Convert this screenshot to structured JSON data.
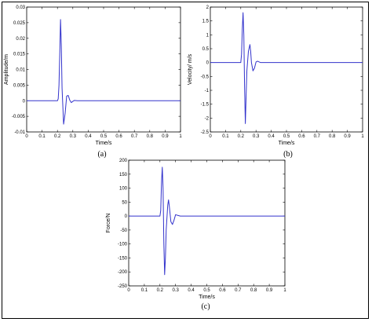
{
  "chart_data": [
    {
      "type": "line",
      "caption": "(a)",
      "xlabel": "Time/s",
      "ylabel": "Amplitude/m",
      "xlim": [
        0,
        1
      ],
      "ylim": [
        -0.01,
        0.03
      ],
      "xticks": [
        "0",
        "0.1",
        "0.2",
        "0.3",
        "0.4",
        "0.5",
        "0.6",
        "0.7",
        "0.8",
        "0.9",
        "1"
      ],
      "yticks": [
        "-0.01",
        "-0.005",
        "0",
        "0.005",
        "0.01",
        "0.015",
        "0.02",
        "0.025",
        "0.03"
      ],
      "grid": false,
      "color": "#3333cc",
      "x": [
        0,
        0.2,
        0.205,
        0.21,
        0.215,
        0.22,
        0.225,
        0.23,
        0.24,
        0.25,
        0.26,
        0.27,
        0.28,
        0.29,
        0.3,
        0.31,
        0.33,
        0.35,
        1
      ],
      "y": [
        0,
        0,
        0.0006,
        0.005,
        0.015,
        0.026,
        0.018,
        0.004,
        -0.0075,
        -0.004,
        0.0015,
        0.0017,
        0.0002,
        -0.0006,
        -0.0002,
        0.0001,
        0,
        0,
        0
      ]
    },
    {
      "type": "line",
      "caption": "(b)",
      "xlabel": "Time/s",
      "ylabel": "Velocity/ m/s",
      "xlim": [
        0,
        1
      ],
      "ylim": [
        -2.5,
        2
      ],
      "xticks": [
        "0",
        "0.1",
        "0.2",
        "0.3",
        "0.4",
        "0.5",
        "0.6",
        "0.7",
        "0.8",
        "0.9",
        "1"
      ],
      "yticks": [
        "-2.5",
        "-2",
        "-1.5",
        "-1",
        "-0.5",
        "0",
        "0.5",
        "1",
        "1.5",
        "2"
      ],
      "grid": false,
      "color": "#3333cc",
      "x": [
        0,
        0.2,
        0.205,
        0.21,
        0.215,
        0.22,
        0.225,
        0.23,
        0.235,
        0.24,
        0.25,
        0.26,
        0.265,
        0.27,
        0.28,
        0.29,
        0.3,
        0.31,
        0.33,
        0.35,
        1
      ],
      "y": [
        0,
        0,
        0.3,
        1.2,
        1.8,
        1.0,
        -0.9,
        -2.2,
        -1.2,
        -0.3,
        0.4,
        0.65,
        0.4,
        0.0,
        -0.3,
        -0.2,
        0.02,
        0.05,
        0,
        0,
        0
      ]
    },
    {
      "type": "line",
      "caption": "(c)",
      "xlabel": "Time/s",
      "ylabel": "Force/N",
      "xlim": [
        0,
        1
      ],
      "ylim": [
        -250,
        200
      ],
      "xticks": [
        "0",
        "0.1",
        "0.2",
        "0.3",
        "0.4",
        "0.5",
        "0.6",
        "0.7",
        "0.8",
        "0.9",
        "1"
      ],
      "yticks": [
        "-250",
        "-200",
        "-150",
        "-100",
        "-50",
        "0",
        "50",
        "100",
        "150",
        "200"
      ],
      "grid": false,
      "color": "#3333cc",
      "x": [
        0,
        0.2,
        0.205,
        0.21,
        0.215,
        0.22,
        0.225,
        0.23,
        0.235,
        0.24,
        0.25,
        0.255,
        0.26,
        0.27,
        0.28,
        0.29,
        0.3,
        0.31,
        0.33,
        0.35,
        1
      ],
      "y": [
        0,
        0,
        20,
        120,
        175,
        100,
        -100,
        -210,
        -150,
        -50,
        40,
        58,
        35,
        -20,
        -30,
        -15,
        5,
        3,
        0,
        0,
        0
      ]
    }
  ]
}
